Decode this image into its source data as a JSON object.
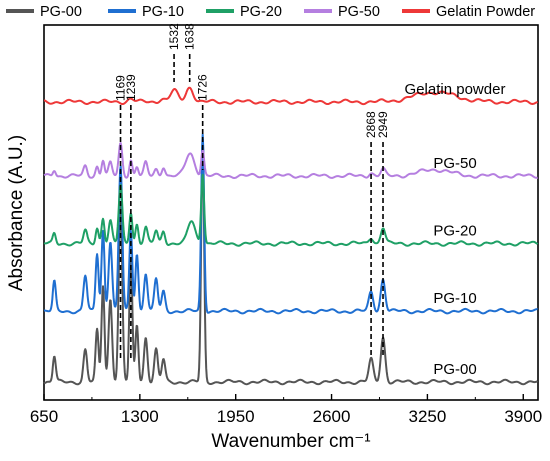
{
  "chart_data": {
    "type": "line",
    "title": "",
    "xlabel": "Wavenumber cm⁻¹",
    "ylabel": "Absorbance (A.U.)",
    "xlim": [
      650,
      4000
    ],
    "x_ticks": [
      650,
      1300,
      1950,
      2600,
      3250,
      3900
    ],
    "x_tick_labels": [
      "650",
      "1300",
      "1950",
      "2600",
      "3250",
      "3900"
    ],
    "y_ticks_shown": false,
    "legend_position": "top",
    "legend": [
      {
        "name": "PG-00",
        "color": "#555555"
      },
      {
        "name": "PG-10",
        "color": "#1f6fd1"
      },
      {
        "name": "PG-20",
        "color": "#1fa066"
      },
      {
        "name": "PG-50",
        "color": "#b57fe0"
      },
      {
        "name": "Gelatin Powder",
        "color": "#ee3838"
      }
    ],
    "series": [
      {
        "name": "PG-00",
        "label": "PG-00",
        "color": "#555555",
        "baseline": 0.0,
        "peaks": [
          [
            720,
            0.08,
            10
          ],
          [
            930,
            0.1,
            12
          ],
          [
            1010,
            0.16,
            10
          ],
          [
            1050,
            0.3,
            10
          ],
          [
            1100,
            0.26,
            12
          ],
          [
            1169,
            0.55,
            12
          ],
          [
            1239,
            0.38,
            10
          ],
          [
            1280,
            0.18,
            10
          ],
          [
            1340,
            0.14,
            12
          ],
          [
            1410,
            0.1,
            12
          ],
          [
            1460,
            0.07,
            12
          ],
          [
            1726,
            0.75,
            10
          ],
          [
            2868,
            0.07,
            15
          ],
          [
            2949,
            0.14,
            15
          ]
        ]
      },
      {
        "name": "PG-10",
        "label": "PG-10",
        "color": "#1f6fd1",
        "baseline": 0.22,
        "peaks": [
          [
            720,
            0.09,
            10
          ],
          [
            930,
            0.11,
            12
          ],
          [
            1010,
            0.18,
            10
          ],
          [
            1050,
            0.25,
            10
          ],
          [
            1100,
            0.22,
            12
          ],
          [
            1169,
            0.45,
            12
          ],
          [
            1239,
            0.25,
            10
          ],
          [
            1280,
            0.18,
            10
          ],
          [
            1340,
            0.12,
            12
          ],
          [
            1410,
            0.1,
            12
          ],
          [
            1460,
            0.06,
            12
          ],
          [
            1726,
            0.55,
            10
          ],
          [
            2868,
            0.06,
            15
          ],
          [
            2949,
            0.1,
            15
          ]
        ]
      },
      {
        "name": "PG-20",
        "label": "PG-20",
        "color": "#1fa066",
        "baseline": 0.43,
        "peaks": [
          [
            720,
            0.03,
            10
          ],
          [
            930,
            0.04,
            12
          ],
          [
            1010,
            0.05,
            10
          ],
          [
            1050,
            0.08,
            10
          ],
          [
            1100,
            0.07,
            12
          ],
          [
            1169,
            0.18,
            12
          ],
          [
            1239,
            0.1,
            10
          ],
          [
            1280,
            0.06,
            10
          ],
          [
            1340,
            0.05,
            12
          ],
          [
            1410,
            0.04,
            12
          ],
          [
            1460,
            0.04,
            12
          ],
          [
            1650,
            0.07,
            25
          ],
          [
            1726,
            0.22,
            10
          ],
          [
            2868,
            0.02,
            15
          ],
          [
            2949,
            0.05,
            15
          ]
        ]
      },
      {
        "name": "PG-50",
        "label": "PG-50",
        "color": "#b57fe0",
        "baseline": 0.64,
        "peaks": [
          [
            720,
            0.02,
            10
          ],
          [
            930,
            0.03,
            12
          ],
          [
            1010,
            0.03,
            10
          ],
          [
            1050,
            0.05,
            10
          ],
          [
            1100,
            0.04,
            12
          ],
          [
            1169,
            0.1,
            12
          ],
          [
            1239,
            0.05,
            10
          ],
          [
            1280,
            0.03,
            10
          ],
          [
            1340,
            0.04,
            12
          ],
          [
            1410,
            0.02,
            12
          ],
          [
            1460,
            0.03,
            12
          ],
          [
            1640,
            0.07,
            30
          ],
          [
            1726,
            0.08,
            10
          ],
          [
            2868,
            0.01,
            15
          ],
          [
            2949,
            0.02,
            15
          ],
          [
            3300,
            0.02,
            100
          ]
        ]
      },
      {
        "name": "Gelatin Powder",
        "label": "Gelatin powder",
        "color": "#ee3838",
        "baseline": 0.87,
        "peaks": [
          [
            1240,
            0.01,
            20
          ],
          [
            1450,
            0.01,
            20
          ],
          [
            1532,
            0.035,
            25
          ],
          [
            1638,
            0.045,
            25
          ],
          [
            3300,
            0.03,
            140
          ]
        ]
      }
    ],
    "annotations": [
      {
        "x": 1532,
        "label": "1532"
      },
      {
        "x": 1638,
        "label": "1638"
      },
      {
        "x": 1169,
        "label": "1169"
      },
      {
        "x": 1239,
        "label": "1239"
      },
      {
        "x": 1726,
        "label": "1726"
      },
      {
        "x": 2868,
        "label": "2868"
      },
      {
        "x": 2949,
        "label": "2949"
      }
    ]
  }
}
